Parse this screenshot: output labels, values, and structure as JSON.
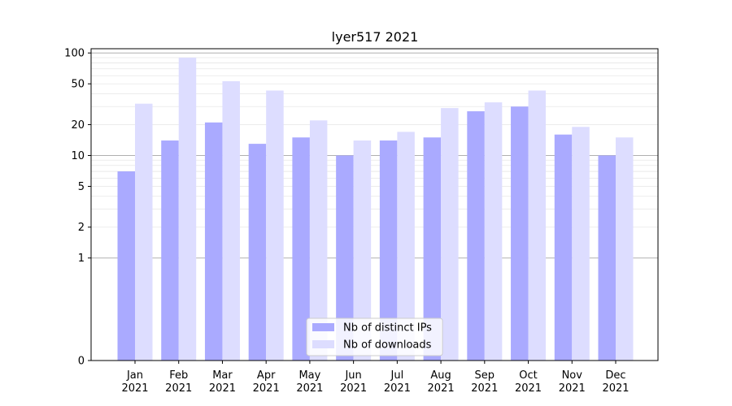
{
  "chart_data": {
    "type": "bar",
    "title": "lyer517 2021",
    "xlabel": "",
    "ylabel": "",
    "y_scale": "symlog",
    "ylim": [
      0,
      110
    ],
    "yticks": [
      0,
      1,
      2,
      5,
      10,
      20,
      50,
      100
    ],
    "ytick_labels": [
      "0",
      "1",
      "2",
      "5",
      "10",
      "20",
      "50",
      "100"
    ],
    "categories": [
      "Jan\n2021",
      "Feb\n2021",
      "Mar\n2021",
      "Apr\n2021",
      "May\n2021",
      "Jun\n2021",
      "Jul\n2021",
      "Aug\n2021",
      "Sep\n2021",
      "Oct\n2021",
      "Nov\n2021",
      "Dec\n2021"
    ],
    "category_lines": [
      [
        "Jan",
        "2021"
      ],
      [
        "Feb",
        "2021"
      ],
      [
        "Mar",
        "2021"
      ],
      [
        "Apr",
        "2021"
      ],
      [
        "May",
        "2021"
      ],
      [
        "Jun",
        "2021"
      ],
      [
        "Jul",
        "2021"
      ],
      [
        "Aug",
        "2021"
      ],
      [
        "Sep",
        "2021"
      ],
      [
        "Oct",
        "2021"
      ],
      [
        "Nov",
        "2021"
      ],
      [
        "Dec",
        "2021"
      ]
    ],
    "series": [
      {
        "name": "Nb of distinct IPs",
        "color": "#aaaaff",
        "values": [
          7,
          14,
          21,
          13,
          15,
          10,
          14,
          15,
          27,
          30,
          16,
          10
        ]
      },
      {
        "name": "Nb of downloads",
        "color": "#ddddff",
        "values": [
          32,
          90,
          53,
          43,
          22,
          14,
          17,
          29,
          33,
          43,
          19,
          15
        ]
      }
    ],
    "grid": true,
    "legend_position": "bottom-center"
  }
}
